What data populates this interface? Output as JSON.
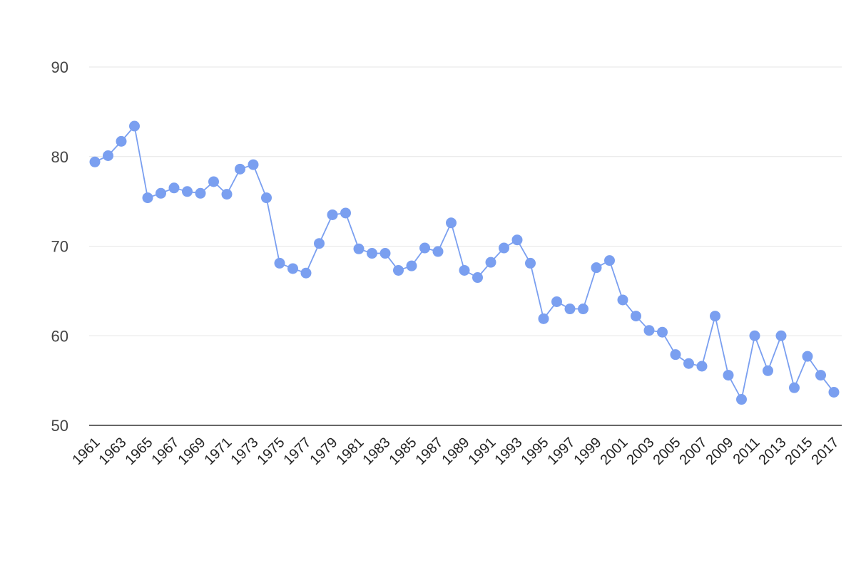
{
  "chart_data": {
    "type": "line",
    "title": "",
    "xlabel": "",
    "ylabel": "",
    "ylim": [
      50,
      90
    ],
    "y_ticks": [
      50,
      60,
      70,
      80,
      90
    ],
    "grid": true,
    "legend": "none",
    "x_tick_labels": [
      "1961",
      "1963",
      "1965",
      "1967",
      "1969",
      "1971",
      "1973",
      "1975",
      "1977",
      "1979",
      "1981",
      "1983",
      "1985",
      "1987",
      "1989",
      "1991",
      "1993",
      "1995",
      "1997",
      "1999",
      "2001",
      "2003",
      "2005",
      "2007",
      "2009",
      "2011",
      "2013",
      "2015",
      "2017"
    ],
    "x": [
      1961,
      1962,
      1963,
      1964,
      1965,
      1966,
      1967,
      1968,
      1969,
      1970,
      1971,
      1972,
      1973,
      1974,
      1975,
      1976,
      1977,
      1978,
      1979,
      1980,
      1981,
      1982,
      1983,
      1984,
      1985,
      1986,
      1987,
      1988,
      1989,
      1990,
      1991,
      1992,
      1993,
      1994,
      1995,
      1996,
      1997,
      1998,
      1999,
      2000,
      2001,
      2002,
      2003,
      2004,
      2005,
      2006,
      2007,
      2008,
      2009,
      2010,
      2011,
      2012,
      2013,
      2014,
      2015,
      2016,
      2017
    ],
    "series": [
      {
        "color": "#7a9ff0",
        "values": [
          79.4,
          80.1,
          81.7,
          83.4,
          75.4,
          75.9,
          76.5,
          76.1,
          75.9,
          77.2,
          75.8,
          78.6,
          79.1,
          75.4,
          68.1,
          67.5,
          67.0,
          70.3,
          73.5,
          73.7,
          69.7,
          69.2,
          69.2,
          67.3,
          67.8,
          69.8,
          69.4,
          72.6,
          67.3,
          66.5,
          68.2,
          69.8,
          70.7,
          68.1,
          61.9,
          63.8,
          63.0,
          63.0,
          67.6,
          68.4,
          64.0,
          62.2,
          60.6,
          60.4,
          57.9,
          56.9,
          56.6,
          62.2,
          55.6,
          52.9,
          60.0,
          56.1,
          60.0,
          54.2,
          57.7,
          55.6,
          53.7
        ]
      }
    ]
  }
}
